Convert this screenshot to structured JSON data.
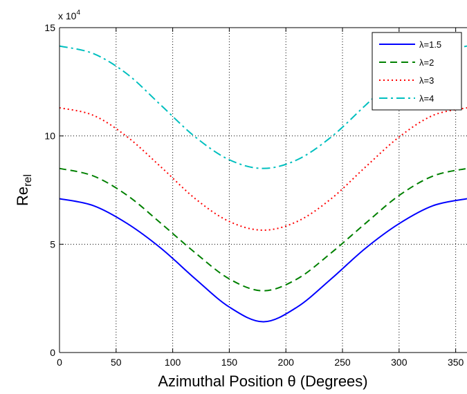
{
  "chart_data": {
    "type": "line",
    "title": "",
    "xlabel": "Azimuthal Position θ (Degrees)",
    "ylabel": "Re",
    "ylabel_subscript": "rel",
    "y_multiplier": "x 10",
    "y_multiplier_exp": "4",
    "xlim": [
      0,
      360
    ],
    "ylim": [
      0,
      15
    ],
    "xticks": [
      0,
      50,
      100,
      150,
      200,
      250,
      300,
      350
    ],
    "yticks": [
      0,
      5,
      10,
      15
    ],
    "grid": true,
    "legend_position": "top-right",
    "x": [
      0,
      30,
      60,
      90,
      120,
      150,
      180,
      210,
      240,
      270,
      300,
      330,
      360
    ],
    "series": [
      {
        "name": "λ=1.5",
        "color": "#0000ff",
        "dash": "solid",
        "values": [
          7.1,
          6.78,
          5.95,
          4.8,
          3.4,
          2.1,
          1.42,
          2.1,
          3.4,
          4.8,
          5.95,
          6.78,
          7.1
        ]
      },
      {
        "name": "λ=2",
        "color": "#008000",
        "dash": "dashed",
        "values": [
          8.5,
          8.15,
          7.25,
          5.95,
          4.6,
          3.4,
          2.85,
          3.4,
          4.6,
          5.95,
          7.25,
          8.15,
          8.5
        ]
      },
      {
        "name": "λ=3",
        "color": "#ff0000",
        "dash": "dotted",
        "values": [
          11.3,
          10.95,
          9.95,
          8.55,
          7.1,
          6.05,
          5.65,
          6.05,
          7.1,
          8.55,
          9.95,
          10.95,
          11.3
        ]
      },
      {
        "name": "λ=4",
        "color": "#00bfbf",
        "dash": "dashdot",
        "values": [
          14.15,
          13.8,
          12.85,
          11.4,
          9.95,
          8.9,
          8.5,
          8.9,
          9.95,
          11.4,
          12.85,
          13.8,
          14.15
        ]
      }
    ]
  }
}
